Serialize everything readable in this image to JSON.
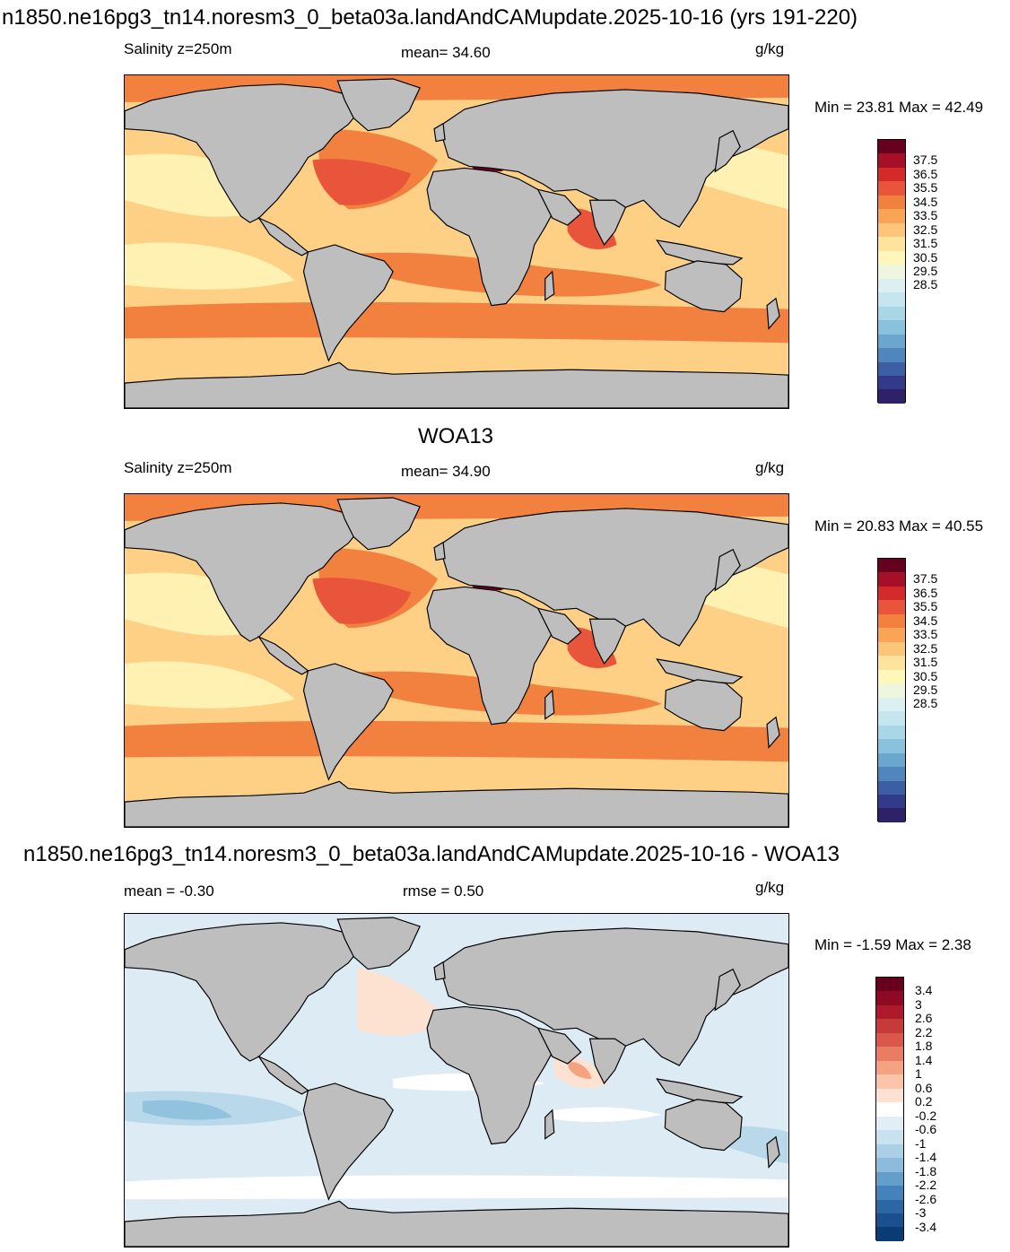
{
  "panel1": {
    "title": "n1850.ne16pg3_tn14.noresm3_0_beta03a.landAndCAMupdate.2025-10-16 (yrs 191-220)",
    "field_label": "Salinity z=250m",
    "mean_label": "mean=  34.60",
    "units": "g/kg",
    "minmax_label": "Min =  23.81 Max =  42.49"
  },
  "panel2": {
    "title": "WOA13",
    "field_label": "Salinity z=250m",
    "mean_label": "mean=  34.90",
    "units": "g/kg",
    "minmax_label": "Min =  20.83 Max =  40.55"
  },
  "panel3": {
    "title": "n1850.ne16pg3_tn14.noresm3_0_beta03a.landAndCAMupdate.2025-10-16 - WOA13",
    "mean_label": "mean =  -0.30",
    "rmse_label": "rmse =   0.50",
    "units": "g/kg",
    "minmax_label": "Min =  -1.59 Max =   2.38"
  },
  "salinity_scale": {
    "tick_labels": [
      "37.5",
      "36.5",
      "35.5",
      "34.5",
      "33.5",
      "32.5",
      "31.5",
      "30.5",
      "29.5",
      "28.5"
    ],
    "colors": [
      "#67001f",
      "#a50f27",
      "#d42b2a",
      "#e8553a",
      "#f2803f",
      "#f9a456",
      "#fdc57a",
      "#fee39b",
      "#fff6bb",
      "#eef7de",
      "#dcf0f1",
      "#c5e6ee",
      "#a9d7e6",
      "#8ac2dd",
      "#6ba6cf",
      "#4f86bd",
      "#3c5fa3",
      "#313b8a",
      "#2f2168"
    ]
  },
  "difference_scale": {
    "tick_labels": [
      "3.4",
      "3",
      "2.6",
      "2.2",
      "1.8",
      "1.4",
      "1",
      "0.6",
      "0.2",
      "-0.2",
      "-0.6",
      "-1",
      "-1.4",
      "-1.8",
      "-2.2",
      "-2.6",
      "-3",
      "-3.4"
    ],
    "colors": [
      "#67001f",
      "#8e0a24",
      "#ae1a2c",
      "#c73a3a",
      "#d9584a",
      "#ea7c61",
      "#f4a280",
      "#fac5a8",
      "#fde2d2",
      "#ffffff",
      "#e1eef6",
      "#c9e2ef",
      "#abd0e6",
      "#8bbcdc",
      "#639fcb",
      "#4383ba",
      "#2b66a5",
      "#19508d",
      "#0b3b73"
    ]
  },
  "map_colors": {
    "land": "#bebebe",
    "panel1": {
      "base": "#fdd086",
      "high": "#f2803f",
      "higher": "#e8553a",
      "max": "#67001f",
      "low": "#fff1b2"
    },
    "panel2": {
      "base": "#fdd086",
      "high": "#f2803f",
      "higher": "#e8553a",
      "max": "#67001f",
      "low": "#fff1b2"
    },
    "panel3": {
      "base": "#dcebf4",
      "pos": "#fde2d2",
      "pos2": "#f4a280",
      "neg": "#b9d9ea",
      "neg2": "#92c3de",
      "zero": "#ffffff"
    }
  }
}
